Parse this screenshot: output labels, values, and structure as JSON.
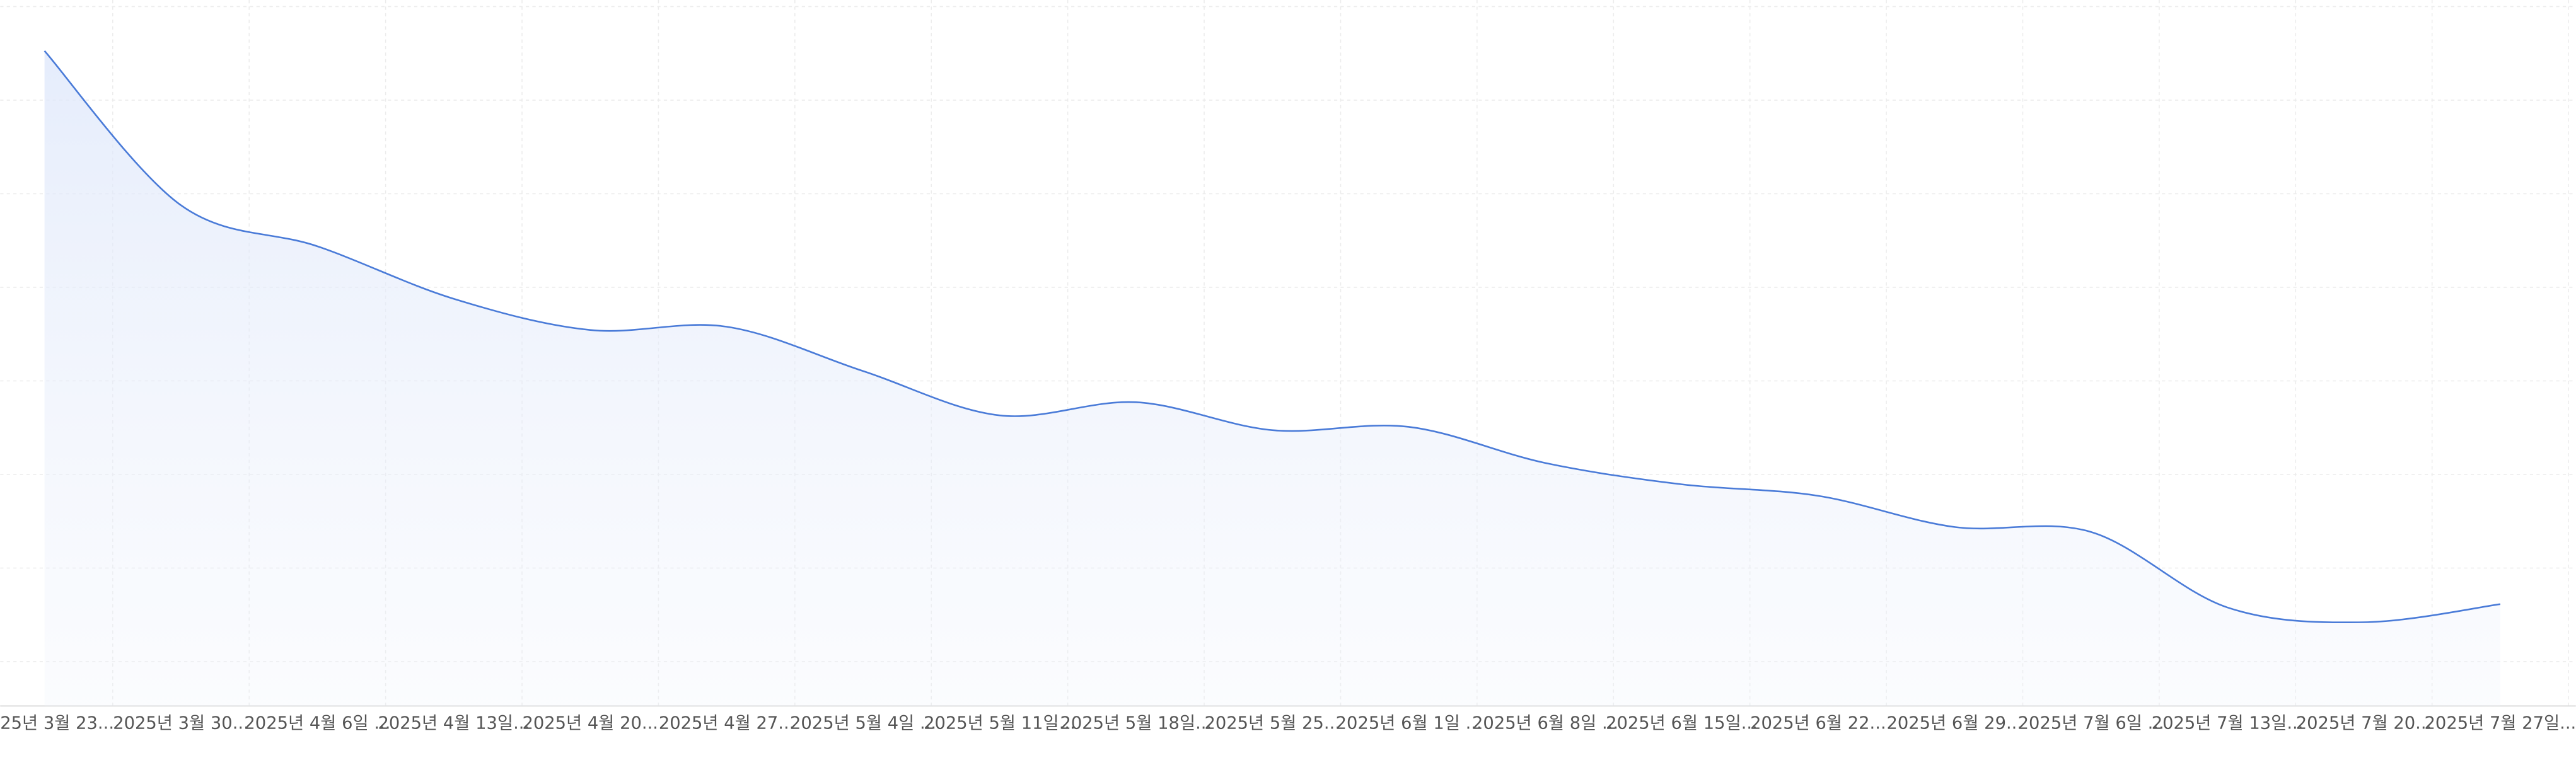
{
  "chart_data": {
    "type": "line",
    "categories": [
      "25년 3월 23...",
      "2025년 3월 30...",
      "2025년 4월 6일 ...",
      "2025년 4월 13일...",
      "2025년 4월 20...",
      "2025년 4월 27...",
      "2025년 5월 4일 ...",
      "2025년 5월 11일...",
      "2025년 5월 18일...",
      "2025년 5월 25...",
      "2025년 6월 1일 ...",
      "2025년 6월 8일 ...",
      "2025년 6월 15일...",
      "2025년 6월 22...",
      "2025년 6월 29...",
      "2025년 7월 6일 ...",
      "2025년 7월 13일...",
      "2025년 7월 20...",
      "2025년 7월 27일..."
    ],
    "values": [
      399,
      305,
      280,
      248,
      229,
      231,
      204,
      177,
      185,
      168,
      170,
      148,
      135,
      128,
      109,
      106,
      60,
      51,
      62
    ],
    "color": "#4a7bd8",
    "ylim": [
      0,
      430
    ]
  }
}
